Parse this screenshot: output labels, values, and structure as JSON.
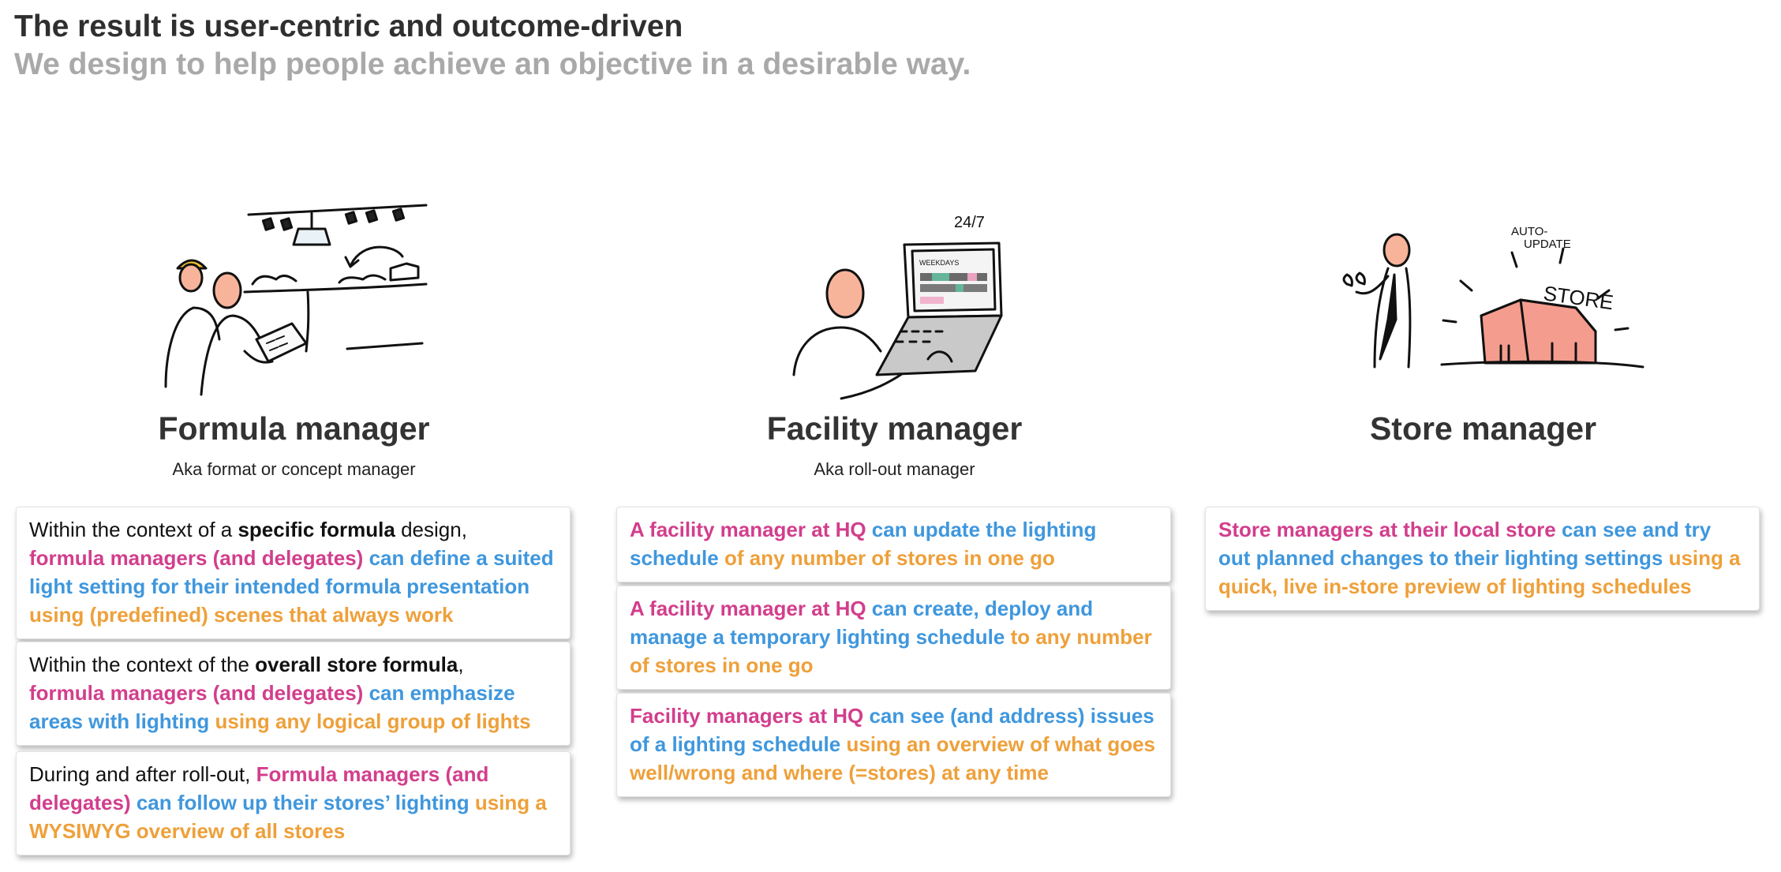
{
  "header": {
    "title": "The result is user-centric and outcome-driven",
    "subtitle": "We design to help people achieve an objective in a desirable way."
  },
  "colors": {
    "who": "#d23e8c",
    "what": "#3f97dd",
    "how": "#eea03a",
    "title": "#2f2f2f",
    "subtitle": "#a9a9a9"
  },
  "roles": [
    {
      "name": "Formula manager",
      "aka": "Aka format or concept manager",
      "illustration": "formula-manager-sketch-icon",
      "cards": [
        {
          "intro": "Within the context of a ",
          "intro_bold": "specific formula",
          "intro_end": " design,",
          "who": "formula managers (and delegates)",
          "what": " can define a suited light setting for their intended formula presentation",
          "how": " using (predefined) scenes that always work"
        },
        {
          "intro": "Within the context of the ",
          "intro_bold": "overall store formula",
          "intro_end": ",",
          "who": "formula managers (and delegates)",
          "what": " can emphasize areas with lighting",
          "how": " using any logical group of lights"
        },
        {
          "intro": "During and after roll-out, ",
          "who": "Formula managers (and delegates)",
          "what": " can follow up their stores’ lighting",
          "how": " using a WYSIWYG overview of all stores"
        }
      ]
    },
    {
      "name": "Facility manager",
      "aka": "Aka roll-out manager",
      "illustration": "facility-manager-laptop-icon",
      "illustration_text": [
        "24/7",
        "WEEKDAYS"
      ],
      "cards": [
        {
          "who": "A facility manager at HQ",
          "what": " can update the lighting schedule",
          "how": " of any number of stores in one go"
        },
        {
          "who": "A facility manager at HQ",
          "what": " can create, deploy and manage a temporary lighting schedule",
          "how": " to any number of stores in one go"
        },
        {
          "who": "Facility managers at HQ",
          "what": " can see (and address) issues of a lighting schedule",
          "how": " using an overview of what goes well/wrong and where (=stores) at any time"
        }
      ]
    },
    {
      "name": "Store manager",
      "aka": "",
      "illustration": "store-manager-store-icon",
      "illustration_text": [
        "AUTO-",
        "UPDATE",
        "STORE"
      ],
      "cards": [
        {
          "who": "Store managers at their local store",
          "what": " can see and try out planned changes to their lighting settings",
          "how": " using a quick, live in-store preview of lighting schedules"
        }
      ]
    }
  ]
}
